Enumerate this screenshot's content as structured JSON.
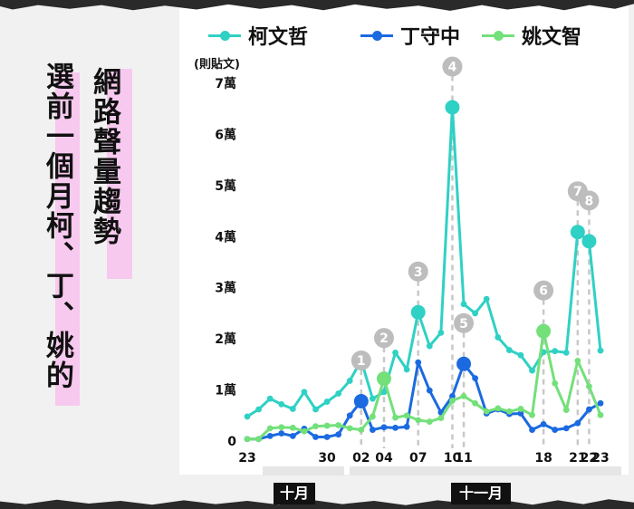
{
  "title": {
    "main": "選前一個月柯、丁、姚的",
    "sub": "網路聲量趨勢"
  },
  "colors": {
    "ko": "#2fd1c4",
    "ting": "#1b6ae0",
    "yao": "#73e07a",
    "highlight": "#f7c9ef",
    "guide": "#c8c8c8",
    "marker": "#bdbdbd"
  },
  "months": {
    "oct": "十月",
    "nov": "十一月"
  },
  "chart_data": {
    "type": "line",
    "ylabel": "(則貼文)",
    "ylim": [
      0,
      70000
    ],
    "y_ticks": [
      {
        "value": 0,
        "label": "0"
      },
      {
        "value": 10000,
        "label": "1萬"
      },
      {
        "value": 20000,
        "label": "2萬"
      },
      {
        "value": 30000,
        "label": "3萬"
      },
      {
        "value": 40000,
        "label": "4萬"
      },
      {
        "value": 50000,
        "label": "5萬"
      },
      {
        "value": 60000,
        "label": "6萬"
      },
      {
        "value": 70000,
        "label": "7萬"
      }
    ],
    "x_ticks": [
      {
        "index": 0,
        "label": "23"
      },
      {
        "index": 7,
        "label": "30"
      },
      {
        "index": 10,
        "label": "02"
      },
      {
        "index": 12,
        "label": "04"
      },
      {
        "index": 15,
        "label": "07"
      },
      {
        "index": 18,
        "label": "10"
      },
      {
        "index": 19,
        "label": "11"
      },
      {
        "index": 26,
        "label": "18"
      },
      {
        "index": 29,
        "label": "21"
      },
      {
        "index": 30,
        "label": "22"
      },
      {
        "index": 31,
        "label": "23"
      }
    ],
    "x_count": 32,
    "series": [
      {
        "name": "柯文哲",
        "color": "#2fd1c4",
        "values": [
          4800,
          6200,
          8300,
          7200,
          6300,
          9600,
          6200,
          7700,
          9300,
          11800,
          15800,
          8300,
          9600,
          17300,
          14000,
          25200,
          18600,
          21200,
          65300,
          26800,
          25000,
          27800,
          20300,
          17800,
          16800,
          13800,
          17400,
          17600,
          17300,
          40900,
          39100,
          17700
        ]
      },
      {
        "name": "丁守中",
        "color": "#1b6ae0",
        "values": [
          400,
          400,
          1000,
          1500,
          1000,
          2400,
          800,
          800,
          1300,
          5000,
          7800,
          2200,
          2700,
          2600,
          2800,
          15400,
          9900,
          5600,
          8800,
          15100,
          12300,
          5400,
          6200,
          5300,
          5400,
          2200,
          3300,
          2200,
          2500,
          3500,
          6200,
          7400
        ]
      },
      {
        "name": "姚文智",
        "color": "#73e07a",
        "values": [
          400,
          400,
          2500,
          2700,
          2600,
          1900,
          2900,
          3000,
          3100,
          2500,
          2200,
          4800,
          12200,
          4600,
          5000,
          4100,
          3800,
          4500,
          7900,
          8800,
          7400,
          5800,
          6400,
          5800,
          6300,
          5100,
          21500,
          11300,
          6100,
          15700,
          10700,
          5100
        ]
      }
    ],
    "annotations": [
      {
        "label": "1",
        "series": 1,
        "index": 10
      },
      {
        "label": "2",
        "series": 2,
        "index": 12
      },
      {
        "label": "3",
        "series": 0,
        "index": 15
      },
      {
        "label": "4",
        "series": 0,
        "index": 18
      },
      {
        "label": "5",
        "series": 1,
        "index": 19
      },
      {
        "label": "6",
        "series": 2,
        "index": 26
      },
      {
        "label": "7",
        "series": 0,
        "index": 29
      },
      {
        "label": "8",
        "series": 0,
        "index": 30
      }
    ],
    "grid": false,
    "legend_position": "top"
  }
}
